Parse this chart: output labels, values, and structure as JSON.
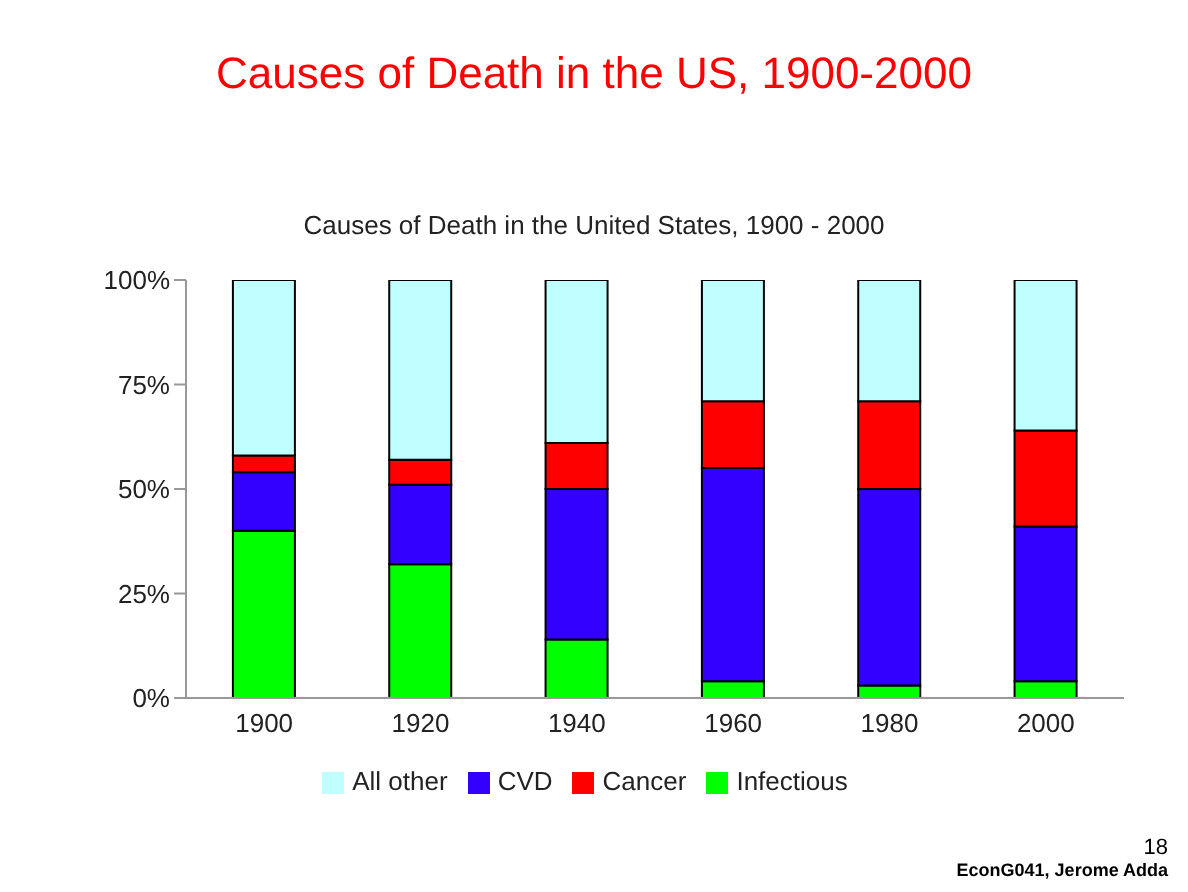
{
  "chart_data": {
    "type": "bar",
    "title": "Causes of Death in the US, 1900-2000",
    "subtitle": "Causes of Death in the United States, 1900 - 2000",
    "categories": [
      "1900",
      "1920",
      "1940",
      "1960",
      "1980",
      "2000"
    ],
    "series": [
      {
        "name": "Infectious",
        "color": "#00ff00",
        "values": [
          40,
          32,
          14,
          4,
          3,
          4
        ]
      },
      {
        "name": "CVD",
        "color": "#3300ff",
        "values": [
          14,
          19,
          36,
          51,
          47,
          37
        ]
      },
      {
        "name": "Cancer",
        "color": "#ff0000",
        "values": [
          4,
          6,
          11,
          16,
          21,
          23
        ]
      },
      {
        "name": "All other",
        "color": "#c0ffff",
        "values": [
          42,
          43,
          39,
          29,
          29,
          36
        ]
      }
    ],
    "stacked": true,
    "ylim": [
      0,
      100
    ],
    "yticks": [
      {
        "value": 0,
        "label": "0%"
      },
      {
        "value": 25,
        "label": "25%"
      },
      {
        "value": 50,
        "label": "50%"
      },
      {
        "value": 75,
        "label": "75%"
      },
      {
        "value": 100,
        "label": "100%"
      }
    ],
    "legend": "bottom",
    "annotations": [
      "18",
      "EconG041, Jerome Adda"
    ]
  }
}
